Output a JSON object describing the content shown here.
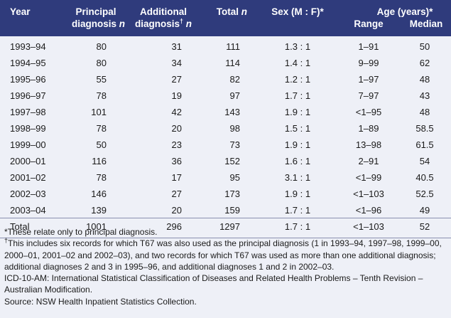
{
  "table": {
    "headers": {
      "year": "Year",
      "principal_line1": "Principal",
      "principal_line2": "diagnosis",
      "additional_line1": "Additional",
      "additional_line2": "diagnosis",
      "dagger": "†",
      "total": "Total",
      "n": "n",
      "sex": "Sex (M : F)*",
      "age": "Age (years)*",
      "range": "Range",
      "median": "Median"
    },
    "rows": [
      {
        "year": "1993–94",
        "principal": "80",
        "additional": "31",
        "total": "111",
        "sex": "1.3 : 1",
        "range": "1–91",
        "median": "50"
      },
      {
        "year": "1994–95",
        "principal": "80",
        "additional": "34",
        "total": "114",
        "sex": "1.4 : 1",
        "range": "9–99",
        "median": "62"
      },
      {
        "year": "1995–96",
        "principal": "55",
        "additional": "27",
        "total": "82",
        "sex": "1.2 : 1",
        "range": "1–97",
        "median": "48"
      },
      {
        "year": "1996–97",
        "principal": "78",
        "additional": "19",
        "total": "97",
        "sex": "1.7 : 1",
        "range": "7–97",
        "median": "43"
      },
      {
        "year": "1997–98",
        "principal": "101",
        "additional": "42",
        "total": "143",
        "sex": "1.9 : 1",
        "range": "<1–95",
        "median": "48"
      },
      {
        "year": "1998–99",
        "principal": "78",
        "additional": "20",
        "total": "98",
        "sex": "1.5 : 1",
        "range": "1–89",
        "median": "58.5"
      },
      {
        "year": "1999–00",
        "principal": "50",
        "additional": "23",
        "total": "73",
        "sex": "1.9 : 1",
        "range": "13–98",
        "median": "61.5"
      },
      {
        "year": "2000–01",
        "principal": "116",
        "additional": "36",
        "total": "152",
        "sex": "1.6 : 1",
        "range": "2–91",
        "median": "54"
      },
      {
        "year": "2001–02",
        "principal": "78",
        "additional": "17",
        "total": "95",
        "sex": "3.1 : 1",
        "range": "<1–99",
        "median": "40.5"
      },
      {
        "year": "2002–03",
        "principal": "146",
        "additional": "27",
        "total": "173",
        "sex": "1.9 : 1",
        "range": "<1–103",
        "median": "52.5"
      },
      {
        "year": "2003–04",
        "principal": "139",
        "additional": "20",
        "total": "159",
        "sex": "1.7 : 1",
        "range": "<1–96",
        "median": "49"
      },
      {
        "year": "Total",
        "principal": "1001",
        "additional": "296",
        "total": "1297",
        "sex": "1.7 : 1",
        "range": "<1–103",
        "median": "52"
      }
    ]
  },
  "notes": {
    "star": "*These relate only to principal diagnosis.",
    "dagger_mark": "†",
    "dagger": "This includes six records for which T67 was also used as the principal diagnosis (1 in 1993–94, 1997–98, 1999–00, 2000–01, 2001–02 and 2002–03), and two records for which T67 was used as more than one additional diagnosis; additional diagnoses 2 and 3 in 1995–96, and additional diagnoses 1 and 2 in 2002–03.",
    "icd": "ICD-10-AM: International Statistical Classification of Diseases and Related Health Problems – Tenth Revision – Australian Modification.",
    "source": "Source: NSW Health Inpatient Statistics Collection."
  }
}
